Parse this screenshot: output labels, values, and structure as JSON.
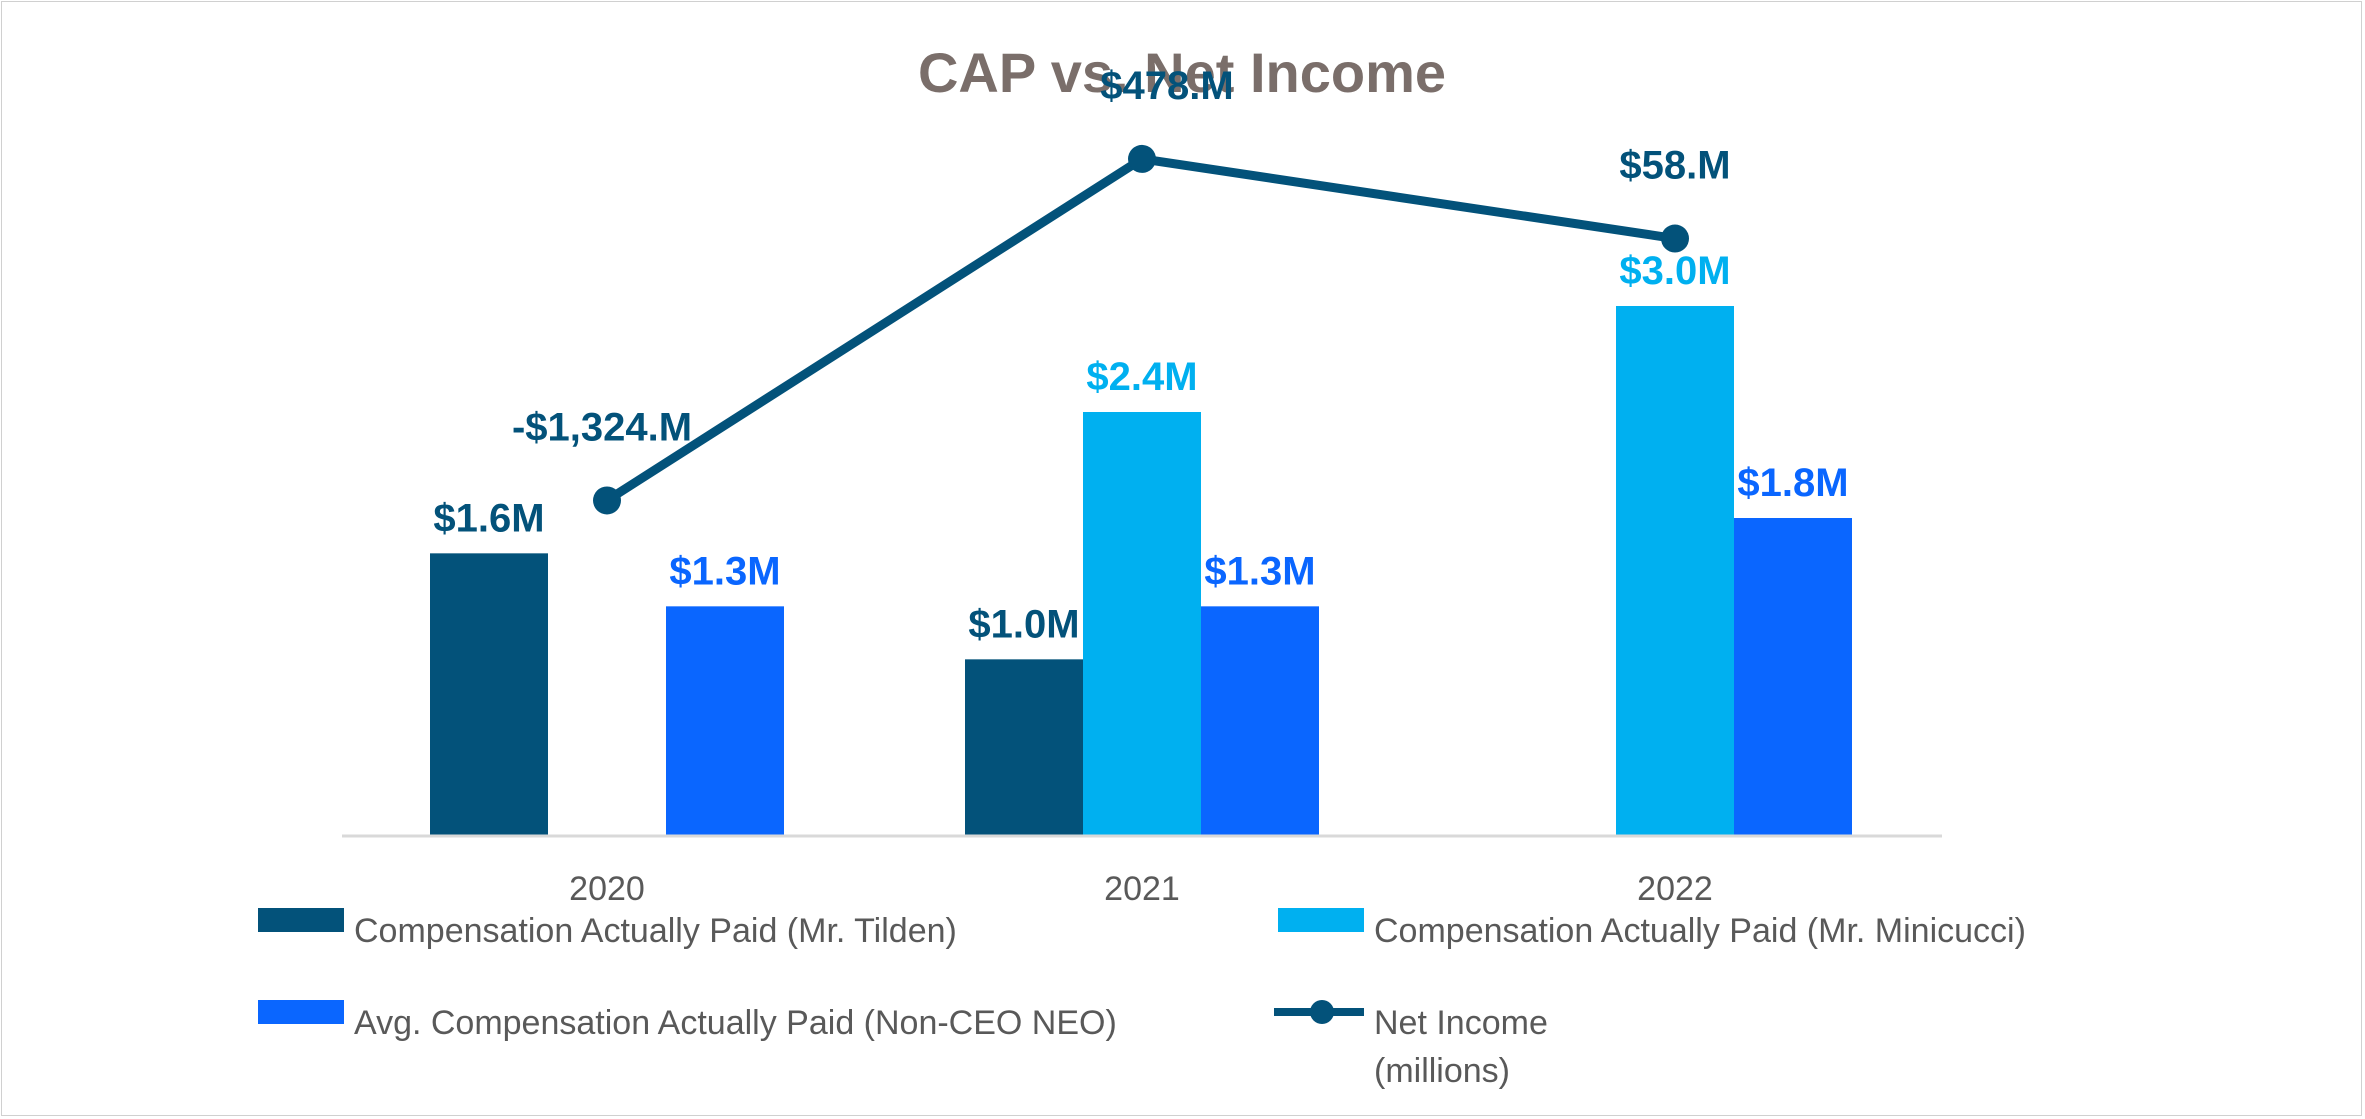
{
  "chart_data": {
    "type": "bar",
    "title": "CAP vs. Net Income",
    "categories": [
      "2020",
      "2021",
      "2022"
    ],
    "series": [
      {
        "name": "Compensation Actually Paid (Mr. Tilden)",
        "color": "#03527a",
        "values": [
          1.6,
          1.0,
          null
        ],
        "labels": [
          "$1.6M",
          "$1.0M",
          ""
        ]
      },
      {
        "name": "Compensation Actually Paid (Mr. Minicucci)",
        "color": "#00b0f0",
        "values": [
          null,
          2.4,
          3.0
        ],
        "labels": [
          "",
          "$2.4M",
          "$3.0M"
        ]
      },
      {
        "name": "Avg. Compensation Actually Paid (Non-CEO NEO)",
        "color": "#0a66ff",
        "values": [
          1.3,
          1.3,
          1.8
        ],
        "labels": [
          "$1.3M",
          "$1.3M",
          "$1.8M"
        ]
      }
    ],
    "line_series": {
      "name": "Net Income",
      "name_line2": "(millions)",
      "color": "#03527a",
      "values": [
        -1324,
        478,
        58
      ],
      "labels": [
        "-$1,324.M",
        "$478.M",
        "$58.M"
      ]
    },
    "bar_ylim": [
      0,
      3.6
    ],
    "line_ylim": [
      -3200,
      1000
    ],
    "xlabel": "",
    "ylabel": "",
    "grid": false,
    "legend_position": "bottom"
  }
}
